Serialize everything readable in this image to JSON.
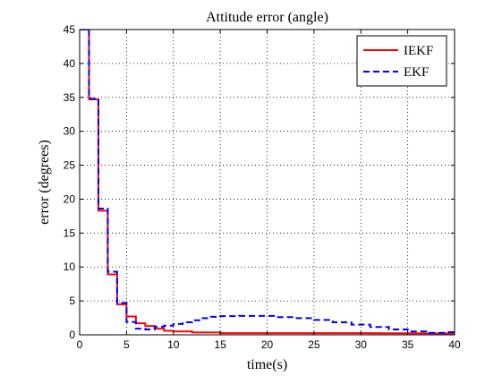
{
  "chart_data": {
    "type": "line",
    "title": "Attitude error (angle)",
    "xlabel": "time(s)",
    "ylabel": "error (degrees)",
    "xlim": [
      0,
      40
    ],
    "ylim": [
      0,
      45
    ],
    "xticks": [
      0,
      5,
      10,
      15,
      20,
      25,
      30,
      35,
      40
    ],
    "yticks": [
      0,
      5,
      10,
      15,
      20,
      25,
      30,
      35,
      40,
      45
    ],
    "grid": true,
    "grid_style": "dotted",
    "legend_position": "top-right",
    "series": [
      {
        "name": "IEKF",
        "color": "#ff0000",
        "line_style": "solid",
        "points": [
          [
            0.0,
            45.0
          ],
          [
            1.0,
            45.0
          ],
          [
            1.0,
            34.7
          ],
          [
            2.0,
            34.7
          ],
          [
            2.0,
            18.3
          ],
          [
            3.0,
            18.3
          ],
          [
            3.0,
            8.9
          ],
          [
            4.0,
            8.9
          ],
          [
            4.0,
            4.5
          ],
          [
            5.0,
            4.5
          ],
          [
            5.0,
            2.7
          ],
          [
            6.0,
            2.7
          ],
          [
            6.0,
            1.7
          ],
          [
            7.0,
            1.7
          ],
          [
            7.0,
            1.3
          ],
          [
            8.0,
            1.3
          ],
          [
            8.0,
            0.9
          ],
          [
            9.0,
            0.9
          ],
          [
            9.0,
            0.6
          ],
          [
            10.0,
            0.6
          ],
          [
            10.0,
            0.5
          ],
          [
            12.0,
            0.5
          ],
          [
            12.0,
            0.35
          ],
          [
            15.0,
            0.35
          ],
          [
            15.0,
            0.25
          ],
          [
            20.0,
            0.25
          ],
          [
            30.0,
            0.25
          ],
          [
            40.0,
            0.2
          ]
        ]
      },
      {
        "name": "EKF",
        "color": "#0000ff",
        "line_style": "dashed",
        "points": [
          [
            0.0,
            45.0
          ],
          [
            1.0,
            45.0
          ],
          [
            1.0,
            34.8
          ],
          [
            2.0,
            34.8
          ],
          [
            2.0,
            18.6
          ],
          [
            3.0,
            18.6
          ],
          [
            3.0,
            9.3
          ],
          [
            4.0,
            9.3
          ],
          [
            4.0,
            4.7
          ],
          [
            5.0,
            4.7
          ],
          [
            5.0,
            1.9
          ],
          [
            6.0,
            1.9
          ],
          [
            6.0,
            0.9
          ],
          [
            7.0,
            0.9
          ],
          [
            7.0,
            0.8
          ],
          [
            8.0,
            0.8
          ],
          [
            8.0,
            1.2
          ],
          [
            9.0,
            1.2
          ],
          [
            9.0,
            1.35
          ],
          [
            10.0,
            1.35
          ],
          [
            10.0,
            1.6
          ],
          [
            11.0,
            1.6
          ],
          [
            11.0,
            1.85
          ],
          [
            12.0,
            1.85
          ],
          [
            12.0,
            2.15
          ],
          [
            13.0,
            2.15
          ],
          [
            13.0,
            2.45
          ],
          [
            14.0,
            2.45
          ],
          [
            14.0,
            2.65
          ],
          [
            15.0,
            2.65
          ],
          [
            15.0,
            2.75
          ],
          [
            17.0,
            2.75
          ],
          [
            17.0,
            2.78
          ],
          [
            21.0,
            2.78
          ],
          [
            21.0,
            2.6
          ],
          [
            23.0,
            2.6
          ],
          [
            23.0,
            2.45
          ],
          [
            25.0,
            2.45
          ],
          [
            25.0,
            2.2
          ],
          [
            27.0,
            2.2
          ],
          [
            27.0,
            1.85
          ],
          [
            29.0,
            1.85
          ],
          [
            29.0,
            1.5
          ],
          [
            31.0,
            1.5
          ],
          [
            31.0,
            1.15
          ],
          [
            33.0,
            1.15
          ],
          [
            33.0,
            0.8
          ],
          [
            35.0,
            0.8
          ],
          [
            35.0,
            0.5
          ],
          [
            37.0,
            0.5
          ],
          [
            37.0,
            0.3
          ],
          [
            39.0,
            0.3
          ],
          [
            39.0,
            0.4
          ],
          [
            40.0,
            0.4
          ]
        ]
      }
    ]
  }
}
